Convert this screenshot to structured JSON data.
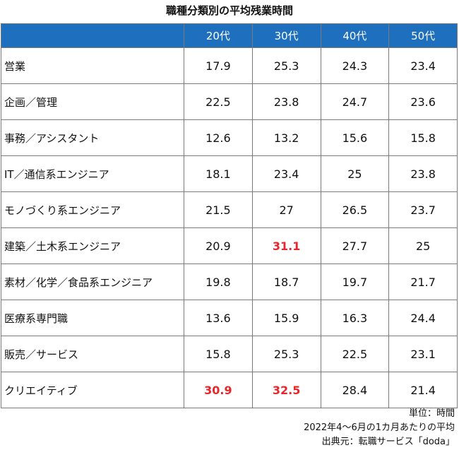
{
  "title": "職種分類別の平均残業時間",
  "table": {
    "headers": [
      "",
      "20代",
      "30代",
      "40代",
      "50代"
    ],
    "rows": [
      {
        "label": "営業",
        "values": [
          "17.9",
          "25.3",
          "24.3",
          "23.4"
        ],
        "highlight": [
          false,
          false,
          false,
          false
        ]
      },
      {
        "label": "企画／管理",
        "values": [
          "22.5",
          "23.8",
          "24.7",
          "23.6"
        ],
        "highlight": [
          false,
          false,
          false,
          false
        ]
      },
      {
        "label": "事務／アシスタント",
        "values": [
          "12.6",
          "13.2",
          "15.6",
          "15.8"
        ],
        "highlight": [
          false,
          false,
          false,
          false
        ]
      },
      {
        "label": "IT／通信系エンジニア",
        "values": [
          "18.1",
          "23.4",
          "25",
          "23.8"
        ],
        "highlight": [
          false,
          false,
          false,
          false
        ]
      },
      {
        "label": "モノづくり系エンジニア",
        "values": [
          "21.5",
          "27",
          "26.5",
          "23.7"
        ],
        "highlight": [
          false,
          false,
          false,
          false
        ]
      },
      {
        "label": "建築／土木系エンジニア",
        "values": [
          "20.9",
          "31.1",
          "27.7",
          "25"
        ],
        "highlight": [
          false,
          true,
          false,
          false
        ]
      },
      {
        "label": "素材／化学／食品系エンジニア",
        "values": [
          "19.8",
          "18.7",
          "19.7",
          "21.7"
        ],
        "highlight": [
          false,
          false,
          false,
          false
        ]
      },
      {
        "label": "医療系専門職",
        "values": [
          "13.6",
          "15.9",
          "16.3",
          "24.4"
        ],
        "highlight": [
          false,
          false,
          false,
          false
        ]
      },
      {
        "label": "販売／サービス",
        "values": [
          "15.8",
          "25.3",
          "22.5",
          "23.1"
        ],
        "highlight": [
          false,
          false,
          false,
          false
        ]
      },
      {
        "label": "クリエイティブ",
        "values": [
          "30.9",
          "32.5",
          "28.4",
          "21.4"
        ],
        "highlight": [
          true,
          true,
          false,
          false
        ]
      }
    ]
  },
  "notes": [
    "単位：時間",
    "2022年4～6月の1カ月あたりの平均",
    "出典元：転職サービス「doda」"
  ],
  "colors": {
    "header_bg": "#1f6fbf",
    "header_text": "#ffffff",
    "highlight_text": "#e8252a",
    "border": "#7a7a7a"
  }
}
